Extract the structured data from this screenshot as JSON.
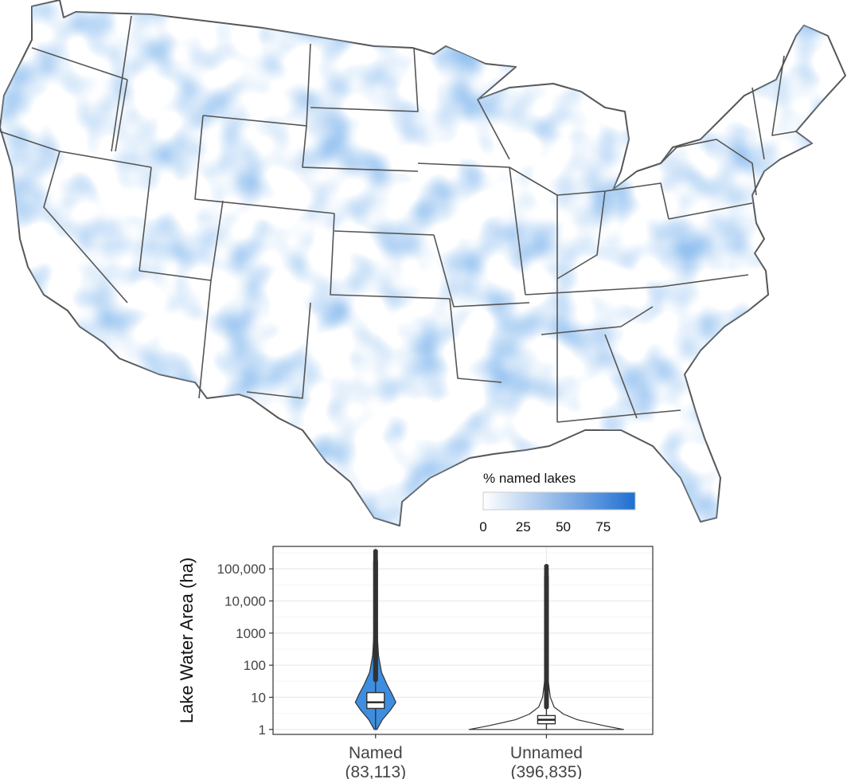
{
  "map_legend": {
    "title": "% named lakes",
    "ticks": [
      "0",
      "25",
      "50",
      "75"
    ],
    "tick_values": [
      0,
      25,
      50,
      75
    ],
    "range": [
      0,
      95
    ],
    "color_low": "#ffffff",
    "color_high": "#1f6fd1"
  },
  "map": {
    "states_drawn": "contiguous United States",
    "fill_color": "#4a86dd",
    "border_color": "#555555"
  },
  "chart_data": {
    "type": "violin",
    "ylabel": "Lake Water Area (ha)",
    "yscale": "log",
    "ylim": [
      0.7,
      500000
    ],
    "yticks": [
      1,
      10,
      100,
      1000,
      10000,
      100000
    ],
    "ytick_labels": [
      "1",
      "10",
      "100",
      "1000",
      "10,000",
      "100,000"
    ],
    "grid": true,
    "categories": [
      "Named",
      "Unnamed"
    ],
    "counts": [
      "(83,113)",
      "(396,835)"
    ],
    "series": [
      {
        "name": "Named",
        "fill": "#3d8ee0",
        "min": 1,
        "q1": 4.5,
        "median": 7,
        "q3": 14,
        "max": 350000,
        "outlier_range": [
          35,
          350000
        ],
        "density": [
          [
            1,
            0.05
          ],
          [
            2,
            0.25
          ],
          [
            4,
            0.55
          ],
          [
            7,
            0.75
          ],
          [
            12,
            0.62
          ],
          [
            25,
            0.42
          ],
          [
            60,
            0.22
          ],
          [
            200,
            0.11
          ],
          [
            1000,
            0.06
          ],
          [
            10000,
            0.03
          ],
          [
            100000,
            0.015
          ],
          [
            350000,
            0.0
          ]
        ]
      },
      {
        "name": "Unnamed",
        "fill": "#ffffff",
        "min": 1,
        "q1": 1.5,
        "median": 2,
        "q3": 2.7,
        "max": 120000,
        "outlier_range": [
          5,
          120000
        ],
        "density": [
          [
            1,
            1.0
          ],
          [
            1.3,
            0.75
          ],
          [
            2,
            0.4
          ],
          [
            3,
            0.22
          ],
          [
            5,
            0.1
          ],
          [
            10,
            0.05
          ],
          [
            30,
            0.025
          ],
          [
            100,
            0.01
          ],
          [
            120000,
            0.0
          ]
        ]
      }
    ]
  }
}
